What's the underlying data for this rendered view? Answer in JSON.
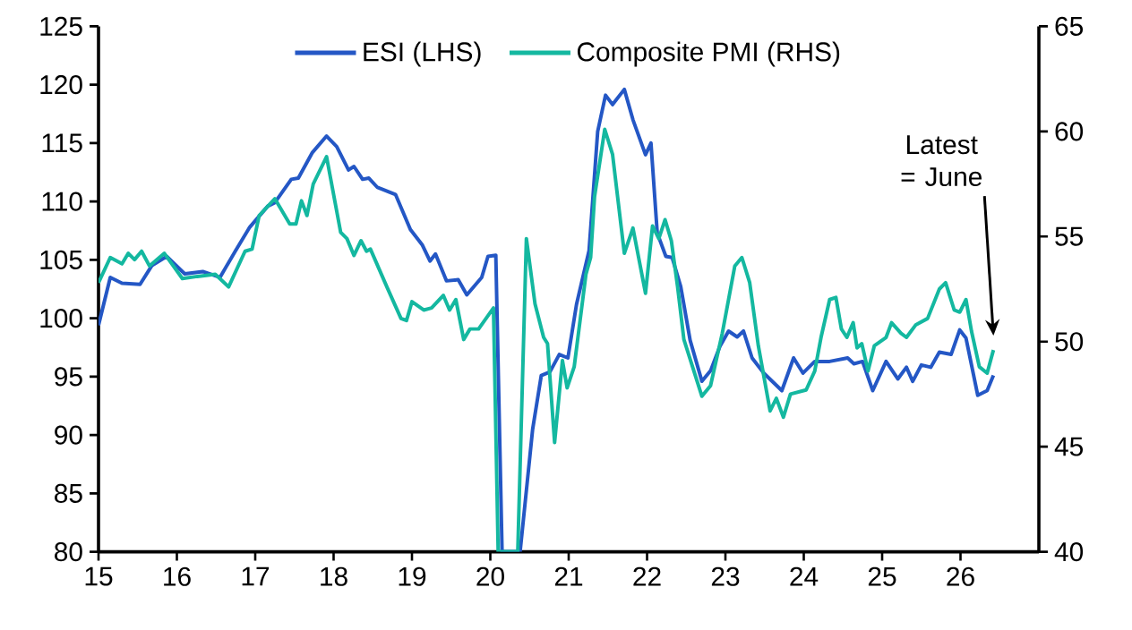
{
  "chart_data": {
    "type": "line",
    "legend": "top",
    "marker": "none",
    "line_style": "solid",
    "xlim": [
      2015,
      2027
    ],
    "xticks": [
      {
        "value": 2015,
        "label": "15"
      },
      {
        "value": 2016,
        "label": "16"
      },
      {
        "value": 2017,
        "label": "17"
      },
      {
        "value": 2018,
        "label": "18"
      },
      {
        "value": 2019,
        "label": "19"
      },
      {
        "value": 2020,
        "label": "20"
      },
      {
        "value": 2021,
        "label": "21"
      },
      {
        "value": 2022,
        "label": "22"
      },
      {
        "value": 2023,
        "label": "23"
      },
      {
        "value": 2024,
        "label": "24"
      },
      {
        "value": 2025,
        "label": "25"
      },
      {
        "value": 2026,
        "label": "26"
      }
    ],
    "ylim": [
      80,
      125
    ],
    "yticks": [
      80,
      85,
      90,
      95,
      100,
      105,
      110,
      115,
      120,
      125
    ],
    "y2lim": [
      40,
      65
    ],
    "y2ticks": [
      40,
      45,
      50,
      55,
      60,
      65
    ],
    "annotations": [
      "Latest = June"
    ],
    "series": [
      {
        "name": "ESI (LHS)",
        "color": "#2457c5",
        "axis": "y",
        "x": [
          2015.0,
          2015.15,
          2015.3,
          2015.53,
          2015.68,
          2015.87,
          2016.1,
          2016.33,
          2016.55,
          2016.75,
          2016.93,
          2017.16,
          2017.25,
          2017.46,
          2017.55,
          2017.73,
          2017.91,
          2018.04,
          2018.19,
          2018.26,
          2018.37,
          2018.45,
          2018.56,
          2018.79,
          2018.98,
          2019.13,
          2019.23,
          2019.3,
          2019.44,
          2019.59,
          2019.7,
          2019.89,
          2019.97,
          2020.07,
          2020.15,
          2020.38,
          2020.54,
          2020.65,
          2020.76,
          2020.88,
          2020.99,
          2021.1,
          2021.26,
          2021.37,
          2021.47,
          2021.56,
          2021.71,
          2021.82,
          2021.98,
          2022.05,
          2022.13,
          2022.24,
          2022.32,
          2022.43,
          2022.55,
          2022.7,
          2022.81,
          2022.93,
          2023.04,
          2023.15,
          2023.23,
          2023.34,
          2023.49,
          2023.72,
          2023.87,
          2023.99,
          2024.14,
          2024.33,
          2024.56,
          2024.64,
          2024.75,
          2024.88,
          2025.05,
          2025.2,
          2025.31,
          2025.39,
          2025.5,
          2025.62,
          2025.73,
          2025.88,
          2025.99,
          2026.07,
          2026.22,
          2026.34,
          2026.42
        ],
        "values": [
          99.4,
          103.5,
          103.0,
          102.9,
          104.5,
          105.3,
          103.8,
          104.0,
          103.5,
          105.8,
          107.8,
          109.6,
          109.9,
          111.9,
          112.0,
          114.2,
          115.6,
          114.7,
          112.7,
          113.0,
          111.9,
          112.0,
          111.2,
          110.6,
          107.6,
          106.3,
          104.9,
          105.5,
          103.2,
          103.3,
          102.0,
          103.5,
          105.3,
          105.4,
          80,
          80,
          90.5,
          95.1,
          95.4,
          96.9,
          96.6,
          101.2,
          105.8,
          116.0,
          119.1,
          118.3,
          119.6,
          117.0,
          114.0,
          115.0,
          107.3,
          105.3,
          105.2,
          102.7,
          98.1,
          94.6,
          95.5,
          97.6,
          98.9,
          98.4,
          98.9,
          96.6,
          95.3,
          93.8,
          96.6,
          95.3,
          96.3,
          96.3,
          96.6,
          96.1,
          96.3,
          93.8,
          96.3,
          94.8,
          95.8,
          94.6,
          96.0,
          95.8,
          97.1,
          96.9,
          99.0,
          98.3,
          93.4,
          93.8,
          95.1
        ]
      },
      {
        "name": "Composite PMI (RHS)",
        "color": "#14b8a0",
        "axis": "y2",
        "x": [
          2015.0,
          2015.15,
          2015.3,
          2015.38,
          2015.46,
          2015.55,
          2015.65,
          2015.84,
          2016.07,
          2016.26,
          2016.49,
          2016.66,
          2016.87,
          2016.96,
          2017.05,
          2017.25,
          2017.44,
          2017.52,
          2017.59,
          2017.66,
          2017.74,
          2017.91,
          2018.09,
          2018.17,
          2018.26,
          2018.35,
          2018.42,
          2018.47,
          2018.61,
          2018.68,
          2018.86,
          2018.93,
          2019.0,
          2019.15,
          2019.25,
          2019.4,
          2019.48,
          2019.56,
          2019.66,
          2019.74,
          2019.85,
          2020.04,
          2020.1,
          2020.35,
          2020.46,
          2020.57,
          2020.68,
          2020.73,
          2020.82,
          2020.92,
          2020.98,
          2021.07,
          2021.22,
          2021.28,
          2021.33,
          2021.46,
          2021.56,
          2021.71,
          2021.82,
          2021.98,
          2022.07,
          2022.15,
          2022.23,
          2022.31,
          2022.39,
          2022.47,
          2022.7,
          2022.81,
          2022.96,
          2023.12,
          2023.21,
          2023.31,
          2023.42,
          2023.57,
          2023.65,
          2023.74,
          2023.83,
          2024.03,
          2024.14,
          2024.22,
          2024.33,
          2024.41,
          2024.48,
          2024.55,
          2024.63,
          2024.68,
          2024.74,
          2024.82,
          2024.9,
          2025.05,
          2025.12,
          2025.24,
          2025.31,
          2025.43,
          2025.58,
          2025.73,
          2025.81,
          2025.92,
          2025.99,
          2026.07,
          2026.14,
          2026.24,
          2026.34,
          2026.42
        ],
        "values": [
          52.8,
          54.0,
          53.7,
          54.2,
          53.9,
          54.3,
          53.6,
          54.2,
          53.0,
          53.1,
          53.2,
          52.6,
          54.3,
          54.4,
          56.0,
          56.8,
          55.6,
          55.6,
          56.7,
          56.0,
          57.5,
          58.8,
          55.2,
          54.9,
          54.1,
          54.8,
          54.3,
          54.4,
          53.2,
          52.6,
          51.1,
          51.0,
          51.9,
          51.5,
          51.6,
          52.2,
          51.5,
          52.0,
          50.1,
          50.6,
          50.6,
          51.6,
          40,
          40,
          54.9,
          51.8,
          50.2,
          49.9,
          45.2,
          49.1,
          47.8,
          48.8,
          53.2,
          54.0,
          56.9,
          60.1,
          58.9,
          54.2,
          55.4,
          52.3,
          55.5,
          54.9,
          55.8,
          54.8,
          52.6,
          50.1,
          47.4,
          47.9,
          50.4,
          53.6,
          54.0,
          52.8,
          49.8,
          46.7,
          47.3,
          46.4,
          47.5,
          47.7,
          48.6,
          50.2,
          52.0,
          52.1,
          50.6,
          50.2,
          50.9,
          49.7,
          49.9,
          48.6,
          49.8,
          50.2,
          50.9,
          50.4,
          50.2,
          50.8,
          51.1,
          52.5,
          52.8,
          51.5,
          51.4,
          52.0,
          50.5,
          48.8,
          48.5,
          49.6
        ]
      }
    ]
  }
}
